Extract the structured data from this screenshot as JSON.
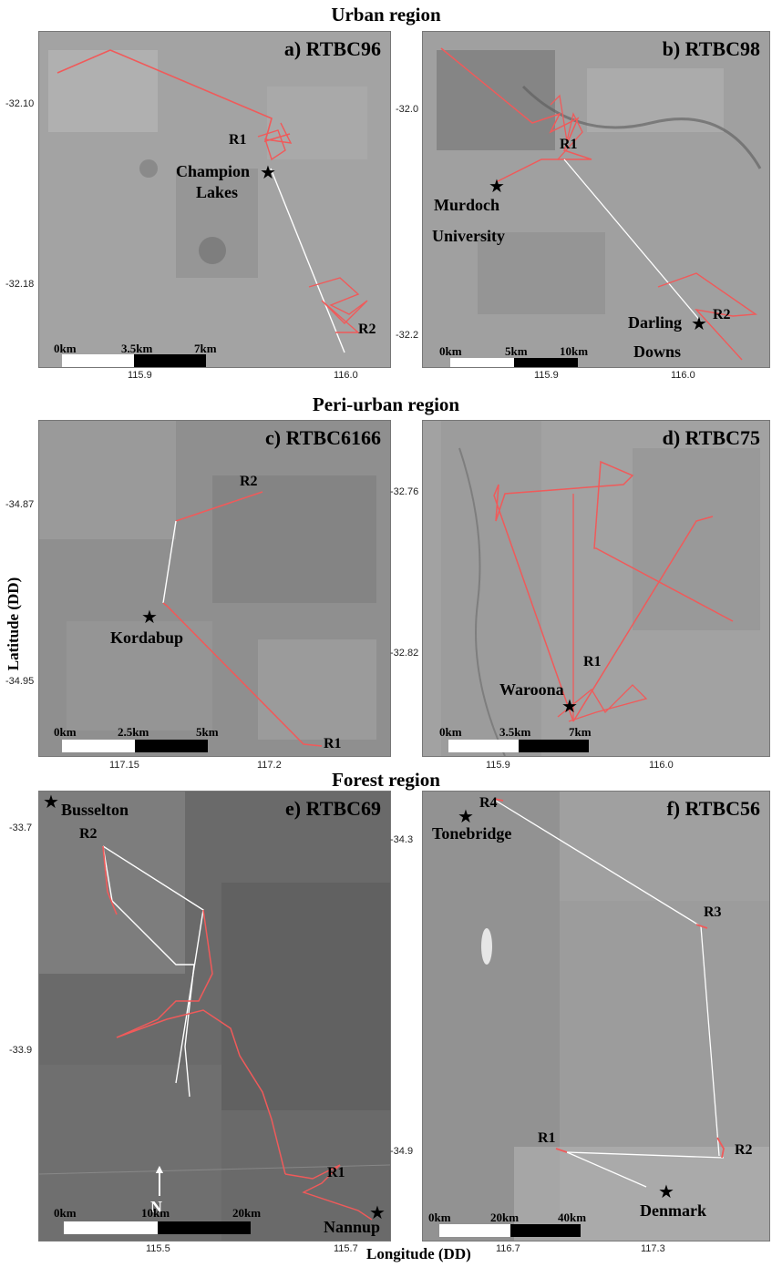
{
  "sections": {
    "urban": "Urban region",
    "peri_urban": "Peri-urban region",
    "forest": "Forest region"
  },
  "axes": {
    "y_title": "Latitude (DD)",
    "x_title": "Longitude (DD)"
  },
  "colors": {
    "track": "#f05a5a",
    "gap_line": "#ffffff",
    "satellite_dark": "#5f5f5f",
    "satellite_light": "#a8a8a8"
  },
  "panels": {
    "a": {
      "label": "a) RTBC96",
      "sites": [
        "R1",
        "R2"
      ],
      "places": [
        "Champion",
        "Lakes"
      ],
      "scale": [
        "0km",
        "3.5km",
        "7km"
      ],
      "y_ticks": [
        "-32.10",
        "-32.18"
      ],
      "x_ticks": [
        "115.9",
        "116.0"
      ]
    },
    "b": {
      "label": "b) RTBC98",
      "sites": [
        "R1",
        "R2"
      ],
      "places": [
        "Murdoch",
        "University",
        "Darling",
        "Downs"
      ],
      "scale": [
        "0km",
        "5km",
        "10km"
      ],
      "y_ticks": [
        "-32.0",
        "-32.2"
      ],
      "x_ticks": [
        "115.9",
        "116.0"
      ]
    },
    "c": {
      "label": "c) RTBC6166",
      "sites": [
        "R2",
        "R1"
      ],
      "places": [
        "Kordabup"
      ],
      "scale": [
        "0km",
        "2.5km",
        "5km"
      ],
      "y_ticks": [
        "-34.87",
        "-34.95"
      ],
      "x_ticks": [
        "117.15",
        "117.2"
      ]
    },
    "d": {
      "label": "d) RTBC75",
      "sites": [
        "R1"
      ],
      "places": [
        "Waroona"
      ],
      "scale": [
        "0km",
        "3.5km",
        "7km"
      ],
      "y_ticks": [
        "-32.76",
        "-32.82"
      ],
      "x_ticks": [
        "115.9",
        "116.0"
      ]
    },
    "e": {
      "label": "e) RTBC69",
      "sites": [
        "R2",
        "R1"
      ],
      "places": [
        "Busselton",
        "Nannup"
      ],
      "north": "N",
      "scale": [
        "0km",
        "10km",
        "20km"
      ],
      "y_ticks": [
        "-33.7",
        "-33.9"
      ],
      "x_ticks": [
        "115.5",
        "115.7"
      ]
    },
    "f": {
      "label": "f) RTBC56",
      "sites": [
        "R4",
        "R3",
        "R1",
        "R2"
      ],
      "places": [
        "Tonebridge",
        "Denmark"
      ],
      "scale": [
        "0km",
        "20km",
        "40km"
      ],
      "y_ticks": [
        "-34.3",
        "-34.9"
      ],
      "x_ticks": [
        "116.7",
        "117.3"
      ]
    }
  }
}
